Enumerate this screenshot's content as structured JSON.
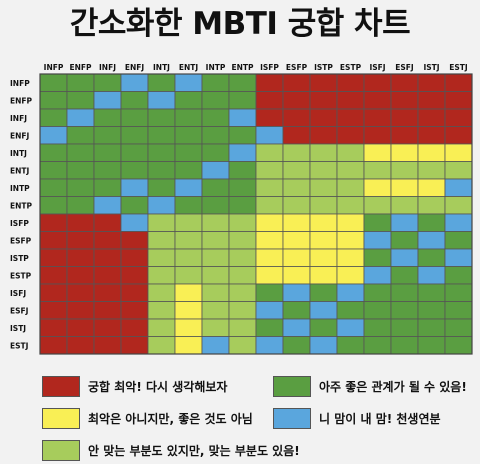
{
  "title": "간소화한 MBTI 궁합 차트",
  "colors": {
    "R": "#b1271e",
    "G": "#5a9e41",
    "B": "#5aa6dd",
    "L": "#a7cc5c",
    "Y": "#f9ef55"
  },
  "chart_data": {
    "type": "heatmap",
    "title": "간소화한 MBTI 궁합 차트",
    "columns": [
      "INFP",
      "ENFP",
      "INFJ",
      "ENFJ",
      "INTJ",
      "ENTJ",
      "INTP",
      "ENTP",
      "ISFP",
      "ESFP",
      "ISTP",
      "ESTP",
      "ISFJ",
      "ESFJ",
      "ISTJ",
      "ESTJ"
    ],
    "rows": [
      "INFP",
      "ENFP",
      "INFJ",
      "ENFJ",
      "INTJ",
      "ENTJ",
      "INTP",
      "ENTP",
      "ISFP",
      "ESFP",
      "ISTP",
      "ESTP",
      "ISFJ",
      "ESFJ",
      "ISTJ",
      "ESTJ"
    ],
    "categories": {
      "R": "궁합 최악! 다시 생각해보자",
      "G": "아주 좋은 관계가 될 수 있음!",
      "Y": "최악은 아니지만, 좋은 것도 아님",
      "B": "니 맘이 내 맘! 천생연분",
      "L": "안 맞는 부분도 있지만, 맞는 부분도 있음!"
    },
    "grid": [
      "GGGBGBGGRRRRRRRR",
      "GGBGBGGGRRRRRRRR",
      "GBGGGGGBRRRRRRRR",
      "BGGGGGGGBRRRRRRR",
      "GGGGGGGBLLLLYYYY",
      "GGGGGGBGLLLLLLLL",
      "GGGBGBGGLLLLYYYB",
      "GGBGBGGGLLLLLLLL",
      "RRRBLLLLYYYYGBGB",
      "RRRRLLLLYYYYBGBG",
      "RRRRLLLLYYYYGBGB",
      "RRRRLLLLYYYYBGBG",
      "RRRRLYLLGBGBGGGG",
      "RRRRLYLLBGBGGGGG",
      "RRRRLYLLGBGBGGGG",
      "RRRRLYBLBGBGGGGG"
    ]
  },
  "legend": [
    {
      "key": "R",
      "label": "궁합 최악! 다시 생각해보자"
    },
    {
      "key": "G",
      "label": "아주 좋은 관계가 될 수 있음!"
    },
    {
      "key": "Y",
      "label": "최악은 아니지만, 좋은 것도 아님"
    },
    {
      "key": "B",
      "label": "니 맘이 내 맘! 천생연분"
    },
    {
      "key": "L",
      "label": "안 맞는 부분도 있지만, 맞는 부분도 있음!"
    }
  ]
}
